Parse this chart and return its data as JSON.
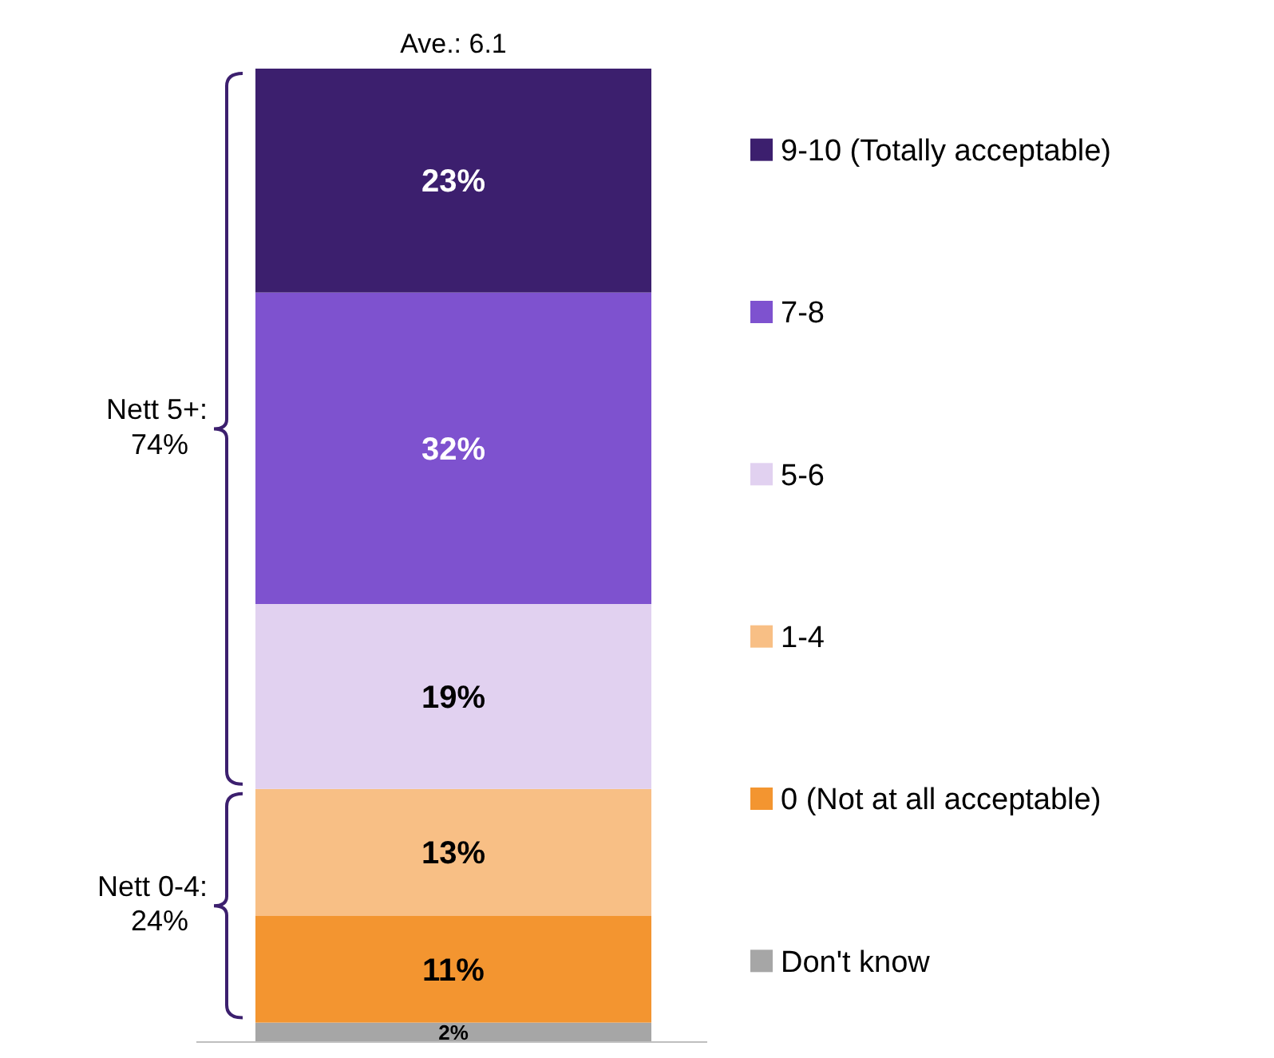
{
  "chart_data": {
    "type": "bar",
    "stacked": true,
    "title": "Ave.: 6.1",
    "categories": [
      null
    ],
    "series": [
      {
        "name": "Don't know",
        "color": "#a6a6a6",
        "values": [
          2
        ],
        "value_labels": [
          "2%"
        ]
      },
      {
        "name": "0 (Not at all acceptable)",
        "color": "#f39530",
        "values": [
          11
        ],
        "value_labels": [
          "11%"
        ]
      },
      {
        "name": "1-4",
        "color": "#f8bf85",
        "values": [
          13
        ],
        "value_labels": [
          "13%"
        ]
      },
      {
        "name": "5-6",
        "color": "#e1d1f0",
        "values": [
          19
        ],
        "value_labels": [
          "19%"
        ]
      },
      {
        "name": "7-8",
        "color": "#7e52cf",
        "values": [
          32
        ],
        "value_labels": [
          "32%"
        ]
      },
      {
        "name": "9-10 (Totally acceptable)",
        "color": "#3c1f6e",
        "values": [
          23
        ],
        "value_labels": [
          "23%"
        ]
      }
    ],
    "legend": "right",
    "annotations": [
      "Nett 5+: 74%",
      "Nett 0-4: 24%"
    ]
  }
}
